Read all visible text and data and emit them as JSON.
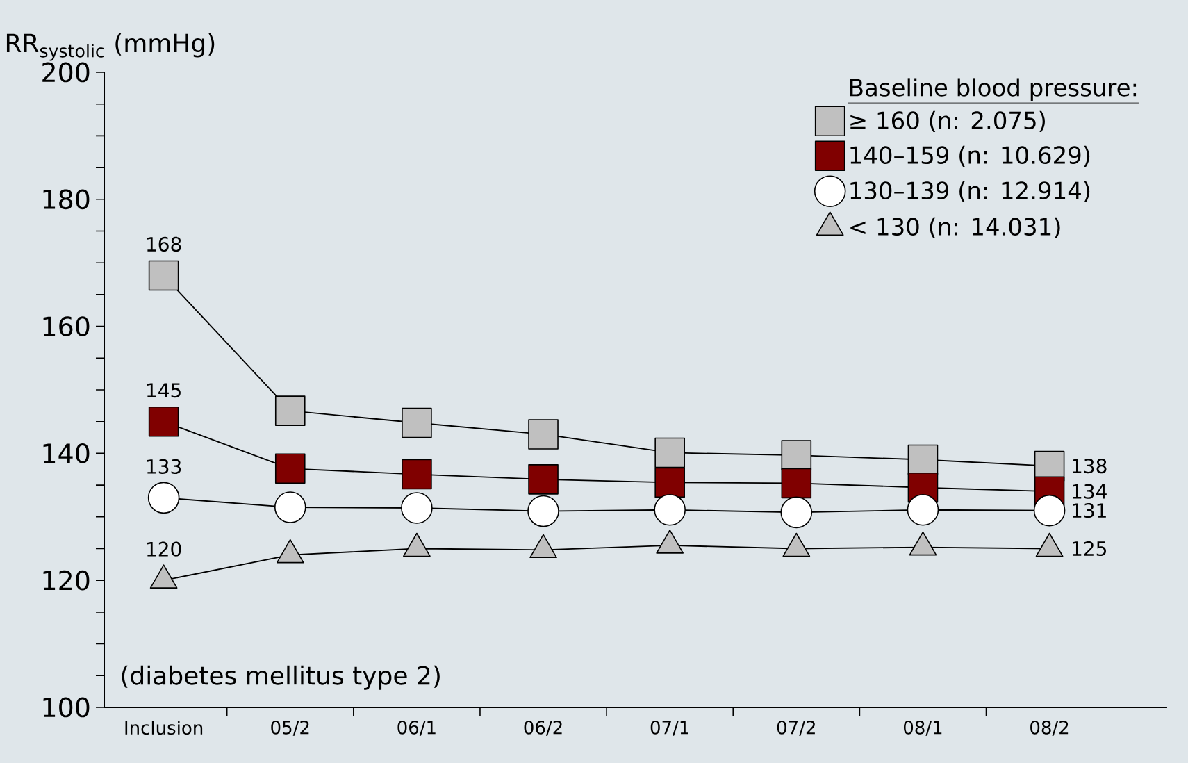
{
  "chart_data": {
    "type": "line",
    "ylabel": "RR$_{systolic}$ (mmHg)",
    "legend_title": "Baseline blood pressure:",
    "legend": "top right",
    "categories": [
      "Inclusion",
      "05/2",
      "06/1",
      "06/2",
      "07/1",
      "07/2",
      "08/1",
      "08/2"
    ],
    "ylim": [
      100,
      200
    ],
    "yticks": [
      100,
      120,
      140,
      160,
      180,
      200
    ],
    "grid": false,
    "series": [
      {
        "name": "≥ 160 (n: 2.075)",
        "color": "#c0c0c0",
        "marker": "square",
        "values": [
          168,
          146.7,
          144.8,
          143.0,
          140.1,
          139.7,
          139.0,
          138
        ],
        "value_labels": [
          "168",
          null,
          null,
          null,
          null,
          null,
          null,
          "138"
        ]
      },
      {
        "name": "140–159 (n: 10.629)",
        "color": "#800000",
        "marker": "square",
        "values": [
          145,
          137.6,
          136.7,
          135.9,
          135.4,
          135.3,
          134.6,
          134
        ],
        "value_labels": [
          "145",
          null,
          null,
          null,
          null,
          null,
          null,
          "134"
        ]
      },
      {
        "name": "130–139 (n: 12.914)",
        "color": "#ffffff",
        "marker": "circle",
        "values": [
          133,
          131.5,
          131.4,
          130.9,
          131.1,
          130.7,
          131.1,
          131
        ],
        "value_labels": [
          "133",
          null,
          null,
          null,
          null,
          null,
          null,
          "131"
        ]
      },
      {
        "name": "< 130 (n: 14.031)",
        "color": "#c0c0c0",
        "marker": "triangle",
        "values": [
          120,
          124.0,
          125.0,
          124.8,
          125.5,
          125.0,
          125.2,
          125
        ],
        "value_labels": [
          "120",
          null,
          null,
          null,
          null,
          null,
          null,
          "125"
        ]
      }
    ],
    "annotations": [
      {
        "text": "(diabetes mellitus type 2)"
      }
    ]
  }
}
